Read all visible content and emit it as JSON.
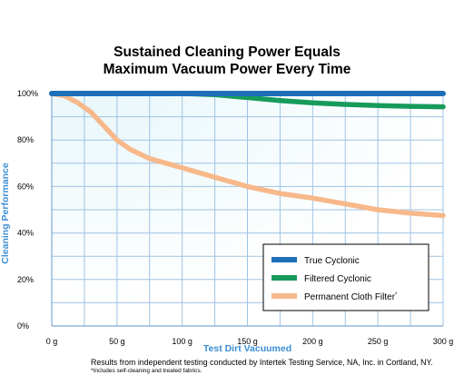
{
  "chart_data": {
    "type": "line",
    "title_lines": [
      "Sustained Cleaning Power Equals",
      "Maximum Vacuum Power Every Time"
    ],
    "xlabel": "Test Dirt Vacuumed",
    "ylabel": "Cleaning Performance",
    "x_ticks": [
      0,
      50,
      100,
      150,
      200,
      250,
      300
    ],
    "x_tick_labels": [
      "0 g",
      "50 g",
      "100 g",
      "150 g",
      "200 g",
      "250 g",
      "300 g"
    ],
    "y_ticks": [
      0,
      20,
      40,
      60,
      80,
      100
    ],
    "y_tick_labels": [
      "0%",
      "20%",
      "40%",
      "60%",
      "80%",
      "100%"
    ],
    "xlim": [
      0,
      300
    ],
    "ylim": [
      0,
      100
    ],
    "grid": true,
    "legend_position": "bottom-right",
    "series": [
      {
        "name": "True Cyclonic",
        "color": "#1d6fb8",
        "x": [
          0,
          50,
          100,
          150,
          200,
          250,
          300
        ],
        "y": [
          100,
          100,
          100,
          100,
          100,
          100,
          100
        ]
      },
      {
        "name": "Filtered Cyclonic",
        "color": "#169b5a",
        "x": [
          0,
          50,
          100,
          125,
          150,
          175,
          200,
          225,
          250,
          275,
          300
        ],
        "y": [
          100,
          100,
          100,
          99.5,
          98.3,
          97,
          96,
          95.3,
          94.8,
          94.5,
          94.3
        ]
      },
      {
        "name": "Permanent Cloth Filter",
        "name_marker": "*",
        "color": "#f7b88a",
        "x": [
          0,
          10,
          20,
          30,
          40,
          50,
          60,
          75,
          100,
          125,
          150,
          175,
          200,
          225,
          250,
          275,
          300
        ],
        "y": [
          100,
          99,
          96,
          92,
          86,
          80,
          76,
          72,
          68,
          64,
          60,
          57,
          55,
          52.5,
          50,
          48.5,
          47.5
        ]
      }
    ]
  },
  "notes": {
    "source": "Results from independent testing conducted by Intertek Testing Service, NA, Inc. in Cortland, NY.",
    "footnote": "*Includes self-cleaning and treated fabrics."
  }
}
